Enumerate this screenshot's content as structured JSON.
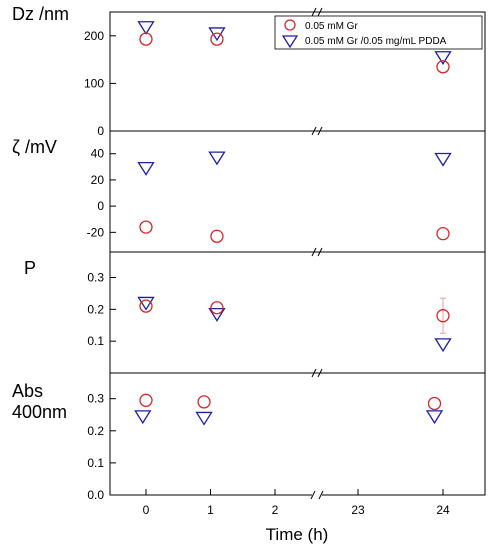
{
  "chart_data": {
    "type": "scatter",
    "x_label": "Time (h)",
    "x_ticks": [
      {
        "label": "0",
        "value": 0
      },
      {
        "label": "1",
        "value": 1
      },
      {
        "label": "2",
        "value": 2
      },
      {
        "label": "23",
        "value": 23
      },
      {
        "label": "24",
        "value": 24
      }
    ],
    "x_axis_break": [
      2,
      23
    ],
    "legend": {
      "placement": "top-right",
      "entries": [
        {
          "label": "0.05 mM Gr",
          "series": "gr"
        },
        {
          "label": "0.05 mM Gr /0.05 mg/mL PDDA",
          "series": "pdda"
        }
      ]
    },
    "series_styles": {
      "gr": {
        "marker": "circle",
        "color": "#d62728"
      },
      "pdda": {
        "marker": "triangle-down",
        "color": "#1f1fa8"
      }
    },
    "panels": [
      {
        "ylabel": "Dz /nm",
        "ylim": [
          0,
          250
        ],
        "yticks": [
          0,
          100,
          200
        ],
        "gr": {
          "x": [
            0,
            1.1,
            24
          ],
          "y": [
            193,
            193,
            135
          ]
        },
        "pdda": {
          "x": [
            0,
            1.1,
            24
          ],
          "y": [
            218,
            205,
            155
          ]
        }
      },
      {
        "ylabel": "ζ /mV",
        "ylim": [
          -35,
          52
        ],
        "yticks": [
          -20,
          0,
          20,
          40
        ],
        "gr": {
          "x": [
            0,
            1.1,
            24
          ],
          "y": [
            -16,
            -23,
            -21
          ]
        },
        "pdda": {
          "x": [
            0,
            1.1,
            24
          ],
          "y": [
            29,
            37,
            36
          ]
        }
      },
      {
        "ylabel": "P",
        "ylim": [
          0,
          0.38
        ],
        "yticks": [
          0.1,
          0.2,
          0.3
        ],
        "gr": {
          "x": [
            0,
            1.1,
            24
          ],
          "y": [
            0.21,
            0.205,
            0.18
          ],
          "yerr": [
            0,
            0,
            0.055
          ]
        },
        "pdda": {
          "x": [
            0,
            1.1,
            24
          ],
          "y": [
            0.22,
            0.185,
            0.09
          ]
        }
      },
      {
        "ylabel": "Abs\n400nm",
        "ylim": [
          0,
          0.38
        ],
        "yticks": [
          0.0,
          0.1,
          0.2,
          0.3
        ],
        "gr": {
          "x": [
            0,
            0.9,
            23.9
          ],
          "y": [
            0.295,
            0.29,
            0.285
          ]
        },
        "pdda": {
          "x": [
            -0.05,
            0.9,
            23.9
          ],
          "y": [
            0.245,
            0.24,
            0.245
          ]
        }
      }
    ]
  }
}
